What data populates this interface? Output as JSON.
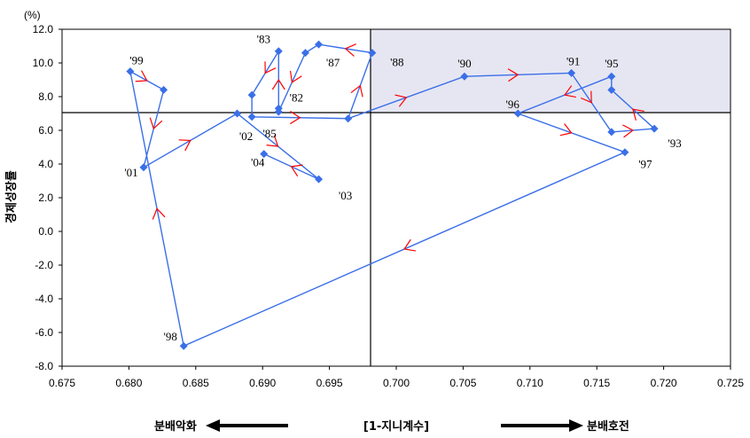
{
  "chart_data": {
    "type": "scatter",
    "xlim": [
      0.675,
      0.725
    ],
    "ylim": [
      -8,
      12
    ],
    "x_ticks": [
      "0.675",
      "0.680",
      "0.685",
      "0.690",
      "0.695",
      "0.700",
      "0.705",
      "0.710",
      "0.715",
      "0.720",
      "0.725"
    ],
    "y_ticks": [
      "-8.0",
      "-6.0",
      "-4.0",
      "-2.0",
      "0.0",
      "2.0",
      "4.0",
      "6.0",
      "8.0",
      "10.0",
      "12.0"
    ],
    "y_unit": "(%)",
    "ylabel": "경제성장률",
    "xlabel": "[1-지니계수]",
    "left_caption": "분배악화",
    "right_caption": "분배호전",
    "crosshair": {
      "x": 0.698,
      "y": 7.0
    },
    "shaded_quadrant": "top-right",
    "colors": {
      "series": "#3a6fe8",
      "arrow": "#ff0000",
      "shade": "#e6e6f2"
    },
    "series": [
      {
        "values": [
          {
            "x": 0.6912,
            "y": 7.3
          },
          {
            "x": 0.6912,
            "y": 10.7
          },
          {
            "x": 0.6892,
            "y": 8.1
          },
          {
            "x": 0.6892,
            "y": 6.8
          },
          {
            "x": 0.6964,
            "y": 6.7
          },
          {
            "x": 0.6982,
            "y": 10.6
          },
          {
            "x": 0.6942,
            "y": 11.1
          },
          {
            "x": 0.6932,
            "y": 10.6
          },
          {
            "x": 0.6912,
            "y": 7.1
          }
        ]
      },
      {
        "values": [
          {
            "x": 0.6964,
            "y": 6.7
          },
          {
            "x": 0.7051,
            "y": 9.2
          },
          {
            "x": 0.7131,
            "y": 9.4
          },
          {
            "x": 0.7161,
            "y": 5.9
          },
          {
            "x": 0.7193,
            "y": 6.1
          },
          {
            "x": 0.7161,
            "y": 8.4
          },
          {
            "x": 0.7161,
            "y": 9.2
          },
          {
            "x": 0.7091,
            "y": 7.0
          },
          {
            "x": 0.7171,
            "y": 4.7
          },
          {
            "x": 0.6841,
            "y": -6.8
          },
          {
            "x": 0.6801,
            "y": 9.5
          },
          {
            "x": 0.6826,
            "y": 8.4
          },
          {
            "x": 0.6811,
            "y": 3.8
          },
          {
            "x": 0.6881,
            "y": 7.0
          },
          {
            "x": 0.6942,
            "y": 3.1
          },
          {
            "x": 0.6901,
            "y": 4.6
          }
        ]
      }
    ],
    "point_labels": [
      {
        "text": "'82",
        "x": 0.6912,
        "y": 7.3
      },
      {
        "text": "'83",
        "x": 0.6912,
        "y": 10.7
      },
      {
        "text": "'85",
        "x": 0.6892,
        "y": 6.8
      },
      {
        "text": "'87",
        "x": 0.6942,
        "y": 11.1
      },
      {
        "text": "'88",
        "x": 0.6982,
        "y": 10.6
      },
      {
        "text": "'90",
        "x": 0.7051,
        "y": 9.2
      },
      {
        "text": "'91",
        "x": 0.7131,
        "y": 9.4
      },
      {
        "text": "'93",
        "x": 0.7193,
        "y": 6.1
      },
      {
        "text": "'95",
        "x": 0.7161,
        "y": 9.2
      },
      {
        "text": "'96",
        "x": 0.7091,
        "y": 7.0
      },
      {
        "text": "'97",
        "x": 0.7171,
        "y": 4.7
      },
      {
        "text": "'98",
        "x": 0.6841,
        "y": -6.8
      },
      {
        "text": "'99",
        "x": 0.6801,
        "y": 9.5
      },
      {
        "text": "'01",
        "x": 0.6811,
        "y": 3.8
      },
      {
        "text": "'02",
        "x": 0.6881,
        "y": 7.0
      },
      {
        "text": "'03",
        "x": 0.6942,
        "y": 3.1
      },
      {
        "text": "'04",
        "x": 0.6901,
        "y": 4.6
      }
    ]
  }
}
